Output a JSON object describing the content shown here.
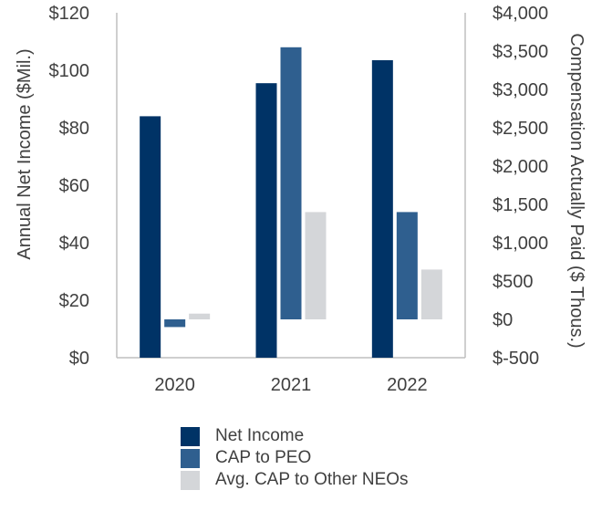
{
  "chart_data": {
    "type": "bar",
    "categories": [
      "2020",
      "2021",
      "2022"
    ],
    "series": [
      {
        "name": "Net Income",
        "axis": "left",
        "color": "#003366",
        "values": [
          84,
          95.5,
          103.5
        ]
      },
      {
        "name": "CAP to PEO",
        "axis": "right",
        "color": "#2f5f8f",
        "values": [
          -100,
          3550,
          1400
        ]
      },
      {
        "name": "Avg. CAP to Other NEOs",
        "axis": "right",
        "color": "#d4d6d9",
        "values": [
          75,
          1400,
          650
        ]
      }
    ],
    "y_left": {
      "label": "Annual Net Income ($Mil.)",
      "ylim": [
        0,
        120
      ],
      "ticks": [
        0,
        20,
        40,
        60,
        80,
        100,
        120
      ],
      "tick_labels": [
        "$0",
        "$20",
        "$40",
        "$60",
        "$80",
        "$100",
        "$120"
      ]
    },
    "y_right": {
      "label": "Compensation Actually Paid ($ Thous.)",
      "ylim": [
        -500,
        4000
      ],
      "ticks": [
        -500,
        0,
        500,
        1000,
        1500,
        2000,
        2500,
        3000,
        3500,
        4000
      ],
      "tick_labels": [
        "$-500",
        "$0",
        "$500",
        "$1,000",
        "$1,500",
        "$2,000",
        "$2,500",
        "$3,000",
        "$3,500",
        "$4,000"
      ]
    },
    "legend_position": "bottom",
    "grid": false
  }
}
